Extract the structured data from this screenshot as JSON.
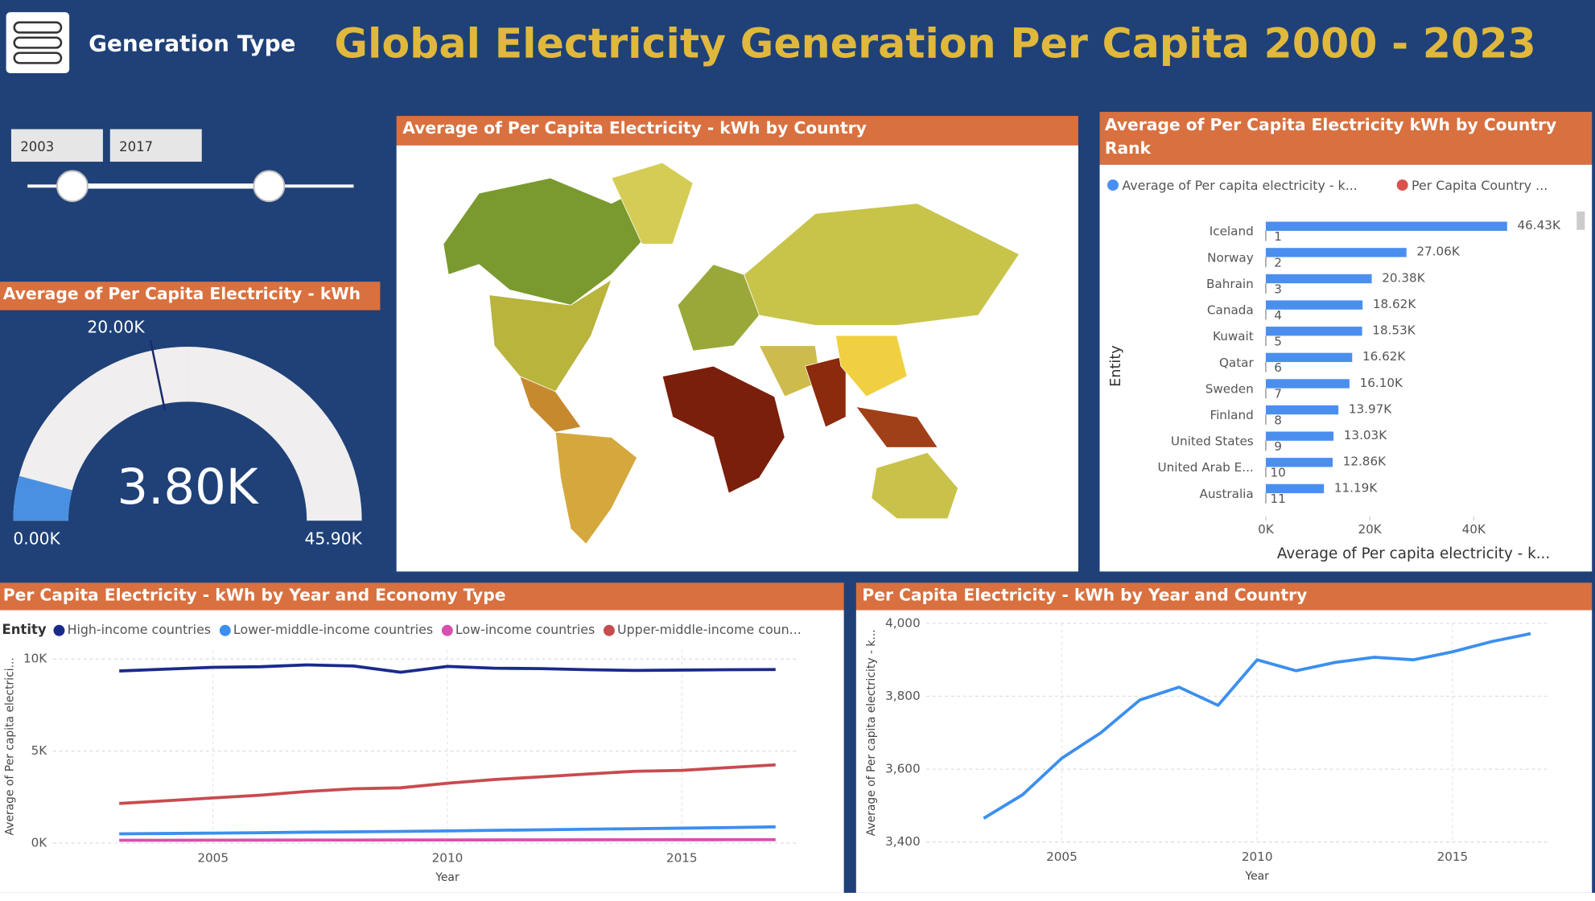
{
  "header": {
    "title": "Global Electricity Generation Per Capita 2000 - 2023",
    "menu_label": "Generation Type"
  },
  "slicer": {
    "start": 2003,
    "end": 2017
  },
  "chart_data": [
    {
      "type": "gauge",
      "title": "Average of Per Capita Electricity - kWh",
      "values": [
        3800
      ],
      "value_labels": [
        "3.80K"
      ],
      "min": {
        "value": 0,
        "label": "0.00K"
      },
      "max": {
        "value": 45900,
        "label": "45.90K"
      },
      "target": {
        "value": 20000,
        "label": "20.00K"
      },
      "color": "#4a90e2"
    },
    {
      "type": "map",
      "title": "Average of Per Capita Electricity - kWh by Country"
    },
    {
      "type": "bar",
      "orientation": "horizontal",
      "title": "Average of Per Capita Electricity kWh by Country Rank",
      "categories": [
        "Iceland",
        "Norway",
        "Bahrain",
        "Canada",
        "Kuwait",
        "Qatar",
        "Sweden",
        "Finland",
        "United States",
        "United Arab E...",
        "Australia"
      ],
      "series": [
        {
          "name": "Average of Per capita electricity - k...",
          "color": "#4a8ff0",
          "values": [
            46430,
            27060,
            20380,
            18620,
            18530,
            16620,
            16100,
            13970,
            13030,
            12860,
            11190
          ],
          "value_labels": [
            "46.43K",
            "27.06K",
            "20.38K",
            "18.62K",
            "18.53K",
            "16.62K",
            "16.10K",
            "13.97K",
            "13.03K",
            "12.86K",
            "11.19K"
          ]
        },
        {
          "name": "Per Capita Country ...",
          "color": "#d9534f",
          "values": [
            1,
            2,
            3,
            4,
            5,
            6,
            7,
            8,
            9,
            10,
            11
          ]
        }
      ],
      "xlim": [
        0,
        50000
      ],
      "xticks": [
        {
          "value": 0,
          "label": "0K"
        },
        {
          "value": 20000,
          "label": "20K"
        },
        {
          "value": 40000,
          "label": "40K"
        }
      ],
      "x_label": "Average of Per capita electricity - k...",
      "y_label": "Entity",
      "legend": "top"
    },
    {
      "type": "line",
      "title": "Per Capita Electricity - kWh by Year and Economy Type",
      "legend_title": "Entity",
      "legend": "top",
      "x": [
        2003,
        2004,
        2005,
        2006,
        2007,
        2008,
        2009,
        2010,
        2011,
        2012,
        2013,
        2014,
        2015,
        2016,
        2017
      ],
      "series": [
        {
          "name": "High-income countries",
          "color": "#1a2a8c",
          "values": [
            9350,
            9450,
            9550,
            9580,
            9680,
            9620,
            9280,
            9600,
            9500,
            9480,
            9420,
            9380,
            9400,
            9420,
            9430
          ]
        },
        {
          "name": "Lower-middle-income countries",
          "color": "#3b8fef",
          "values": [
            500,
            520,
            540,
            560,
            590,
            610,
            630,
            660,
            690,
            720,
            750,
            780,
            810,
            840,
            880
          ]
        },
        {
          "name": "Low-income countries",
          "color": "#d94fae",
          "values": [
            150,
            152,
            155,
            158,
            160,
            162,
            165,
            168,
            170,
            172,
            175,
            178,
            180,
            182,
            185
          ]
        },
        {
          "name": "Upper-middle-income coun...",
          "color": "#c84b4f",
          "values": [
            2150,
            2300,
            2450,
            2600,
            2800,
            2950,
            3000,
            3250,
            3450,
            3600,
            3750,
            3900,
            3950,
            4100,
            4250
          ]
        }
      ],
      "xlim": [
        2002.5,
        2017.5
      ],
      "xticks": [
        2005,
        2010,
        2015
      ],
      "ylim": [
        0,
        10500
      ],
      "yticks": [
        {
          "value": 0,
          "label": "0K"
        },
        {
          "value": 5000,
          "label": "5K"
        },
        {
          "value": 10000,
          "label": "10K"
        }
      ],
      "x_label": "Year",
      "y_label": "Average of Per capita electrici...",
      "grid": true
    },
    {
      "type": "line",
      "title": "Per Capita Electricity - kWh by Year and Country",
      "x": [
        2003,
        2004,
        2005,
        2006,
        2007,
        2008,
        2009,
        2010,
        2011,
        2012,
        2013,
        2014,
        2015,
        2016,
        2017
      ],
      "series": [
        {
          "color": "#3b8fef",
          "values": [
            3465,
            3530,
            3630,
            3700,
            3790,
            3825,
            3775,
            3900,
            3870,
            3893,
            3907,
            3900,
            3922,
            3950,
            3972
          ]
        }
      ],
      "xlim": [
        2002.5,
        2017.5
      ],
      "xticks": [
        2005,
        2010,
        2015
      ],
      "ylim": [
        3400,
        4000
      ],
      "yticks": [
        {
          "value": 3400,
          "label": "3,400"
        },
        {
          "value": 3600,
          "label": "3,600"
        },
        {
          "value": 3800,
          "label": "3,800"
        },
        {
          "value": 4000,
          "label": "4,000"
        }
      ],
      "x_label": "Year",
      "y_label": "Average of Per capita electricity - k...",
      "grid": true
    }
  ]
}
